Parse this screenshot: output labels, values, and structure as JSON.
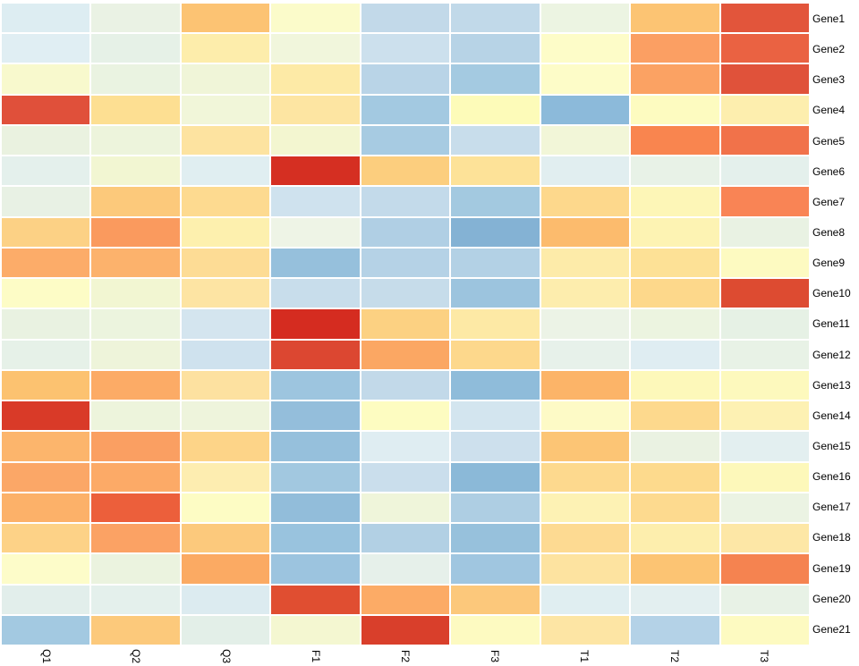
{
  "chart_data": {
    "type": "heatmap",
    "title": "",
    "legend": "none",
    "row_label_side": "right",
    "col_label_rotation_deg": 90,
    "grid_gap_color": "#ffffff",
    "colormap": "RdYlBu reversed (blue = low, pale yellow = mid, red = high)",
    "value_range_estimate": [
      -2,
      2.5
    ],
    "columns": [
      "Q1",
      "Q2",
      "Q3",
      "F1",
      "F2",
      "F3",
      "T1",
      "T2",
      "T3"
    ],
    "rows": [
      "Gene1",
      "Gene2",
      "Gene3",
      "Gene4",
      "Gene5",
      "Gene6",
      "Gene7",
      "Gene8",
      "Gene9",
      "Gene10",
      "Gene11",
      "Gene12",
      "Gene13",
      "Gene14",
      "Gene15",
      "Gene16",
      "Gene17",
      "Gene18",
      "Gene19",
      "Gene20",
      "Gene21"
    ],
    "values": [
      [
        -0.45,
        -0.05,
        1.15,
        0.25,
        -0.9,
        -0.9,
        -0.05,
        1.15,
        2.1
      ],
      [
        -0.45,
        -0.15,
        0.55,
        0.1,
        -0.75,
        -1.1,
        0.25,
        1.5,
        2.0
      ],
      [
        0.1,
        -0.05,
        0.1,
        0.55,
        -1.1,
        -1.3,
        0.25,
        1.5,
        2.2
      ],
      [
        2.2,
        0.85,
        0.1,
        0.7,
        -1.3,
        0.4,
        -1.5,
        0.25,
        0.55
      ],
      [
        -0.05,
        -0.05,
        0.7,
        0.1,
        -1.3,
        -0.75,
        0.1,
        1.7,
        1.85
      ],
      [
        -0.3,
        0.1,
        -0.45,
        2.5,
        1.0,
        0.7,
        -0.45,
        -0.15,
        -0.3
      ],
      [
        -0.15,
        1.0,
        0.85,
        -0.75,
        -0.9,
        -1.3,
        0.85,
        0.4,
        1.7
      ],
      [
        1.0,
        1.5,
        0.4,
        -0.05,
        -1.1,
        -1.65,
        1.15,
        0.4,
        -0.05
      ],
      [
        1.35,
        1.35,
        0.85,
        -1.5,
        -1.1,
        -1.1,
        0.55,
        0.7,
        0.25
      ],
      [
        0.25,
        0.1,
        0.7,
        -0.75,
        -0.9,
        -1.3,
        0.55,
        0.85,
        2.3
      ],
      [
        -0.05,
        -0.05,
        -0.6,
        2.5,
        1.0,
        0.55,
        -0.15,
        -0.05,
        -0.15
      ],
      [
        -0.15,
        -0.05,
        -0.75,
        2.3,
        1.5,
        0.85,
        -0.15,
        -0.45,
        -0.15
      ],
      [
        1.15,
        1.35,
        0.7,
        -1.3,
        -0.9,
        -1.5,
        1.35,
        0.4,
        0.4
      ],
      [
        2.4,
        -0.05,
        -0.05,
        -1.5,
        0.25,
        -0.6,
        0.25,
        0.85,
        0.4
      ],
      [
        1.35,
        1.5,
        1.0,
        -1.5,
        -0.45,
        -0.75,
        1.15,
        -0.05,
        -0.3
      ],
      [
        1.5,
        1.35,
        0.55,
        -1.3,
        -0.75,
        -1.5,
        0.85,
        0.85,
        0.4
      ],
      [
        1.35,
        2.0,
        0.25,
        -1.5,
        0.1,
        -1.1,
        0.4,
        0.85,
        -0.05
      ],
      [
        1.0,
        1.5,
        1.0,
        -1.3,
        -1.1,
        -1.5,
        0.85,
        0.55,
        0.7
      ],
      [
        0.25,
        -0.05,
        1.5,
        -1.3,
        -0.3,
        -1.3,
        0.7,
        1.15,
        1.7
      ],
      [
        -0.3,
        -0.3,
        -0.45,
        2.2,
        1.35,
        1.0,
        -0.45,
        -0.3,
        -0.15
      ],
      [
        -1.3,
        1.0,
        -0.3,
        0.1,
        2.4,
        0.25,
        0.7,
        -1.1,
        0.25
      ]
    ],
    "cell_colors": [
      [
        "#ddedf2",
        "#eaf2e4",
        "#fcc373",
        "#fbfbca",
        "#c2d9e9",
        "#c1d9e9",
        "#ecf4e2",
        "#fcc473",
        "#e2553b"
      ],
      [
        "#e0eef3",
        "#e6f1e7",
        "#fdedab",
        "#f1f6dc",
        "#cce0ed",
        "#b7d3e6",
        "#fdfcc8",
        "#fb9f63",
        "#ea6242"
      ],
      [
        "#f8f9cd",
        "#eaf3e1",
        "#f0f5d8",
        "#fdeaa6",
        "#b9d4e7",
        "#a4cae1",
        "#fdfcc8",
        "#fba263",
        "#e0523a"
      ],
      [
        "#e0503a",
        "#fddf92",
        "#f1f6d9",
        "#fde5a2",
        "#a3c9e1",
        "#fdfbb9",
        "#8cbada",
        "#fdfbc0",
        "#fdeeae"
      ],
      [
        "#eaf2e0",
        "#edf4dc",
        "#fde3a0",
        "#f3f6d0",
        "#a7cbe2",
        "#c8ddeb",
        "#f2f6d8",
        "#f9854f",
        "#f1724a"
      ],
      [
        "#e4f0ec",
        "#f2f6d2",
        "#e0eef1",
        "#d52f22",
        "#fcce7e",
        "#fde298",
        "#e1eef0",
        "#e8f2e7",
        "#e4f0ec"
      ],
      [
        "#e8f1e4",
        "#fcc97b",
        "#fdda90",
        "#cfe2ee",
        "#c3daea",
        "#a3c9e0",
        "#fdd88c",
        "#fdf6b7",
        "#f98455"
      ],
      [
        "#fcd185",
        "#fa9a5e",
        "#fdf0ae",
        "#eef4e6",
        "#b0cfe4",
        "#84b2d4",
        "#fcbb6d",
        "#fdf3b3",
        "#e9f2e3"
      ],
      [
        "#fcac69",
        "#fcb26c",
        "#fddc95",
        "#96c0dc",
        "#b5d2e6",
        "#b3d1e5",
        "#fdeba9",
        "#fde196",
        "#fdfac1"
      ],
      [
        "#fdfcc6",
        "#f2f6d2",
        "#fde4a3",
        "#c8ddeb",
        "#c6dcea",
        "#9cc4de",
        "#fdedad",
        "#fdd88b",
        "#dd4b31"
      ],
      [
        "#e9f2e1",
        "#ecf4de",
        "#d4e5ef",
        "#d52c20",
        "#fcd182",
        "#fde9a5",
        "#ecf3e6",
        "#ecf4e0",
        "#e6f1e5"
      ],
      [
        "#e6f1e8",
        "#eef4da",
        "#cfe2ee",
        "#dc4731",
        "#fba763",
        "#fdd88c",
        "#e7f1ea",
        "#dfedf2",
        "#e8f2e6"
      ],
      [
        "#fcc270",
        "#fcab66",
        "#fde1a0",
        "#9dc5df",
        "#c2d9e9",
        "#8fbcda",
        "#fcb468",
        "#fdf8ba",
        "#fdf9bd"
      ],
      [
        "#d93a28",
        "#edf4dc",
        "#eef4dc",
        "#94bedb",
        "#fdfcc1",
        "#d3e5ef",
        "#fdfac6",
        "#fdd98d",
        "#fdf1b3"
      ],
      [
        "#fcb56c",
        "#fa9f62",
        "#fdd488",
        "#96c0dc",
        "#dfedf2",
        "#cde0ed",
        "#fcc575",
        "#eaf2e2",
        "#e3eff0"
      ],
      [
        "#fba767",
        "#fcaa67",
        "#fdedb0",
        "#a2c8e0",
        "#cadeec",
        "#8bb9d8",
        "#fdd98e",
        "#fdda8d",
        "#fdf8ba"
      ],
      [
        "#fcb169",
        "#ec5f3b",
        "#fdfcc4",
        "#92bdda",
        "#eff5da",
        "#aecee3",
        "#fdf2b4",
        "#fdda8f",
        "#ebf3e3"
      ],
      [
        "#fdd287",
        "#fba264",
        "#fcc97c",
        "#99c3de",
        "#b2d0e4",
        "#97c1dc",
        "#fdda92",
        "#fdeead",
        "#fde7a6"
      ],
      [
        "#fdfcc9",
        "#ebf3df",
        "#fbaa63",
        "#9cc4df",
        "#e6f0ea",
        "#a0c6e0",
        "#fde3a0",
        "#fcc473",
        "#f58350"
      ],
      [
        "#e2eeeb",
        "#e4f0ec",
        "#dcebf0",
        "#e04e31",
        "#fcab66",
        "#fcc87b",
        "#e0eef1",
        "#e3eff0",
        "#e8f2e6"
      ],
      [
        "#a3c9e1",
        "#fcc97b",
        "#e3efe8",
        "#f4f7d1",
        "#d93f2b",
        "#fdfac1",
        "#fde5a4",
        "#b4d2e7",
        "#fdfac1"
      ]
    ]
  }
}
